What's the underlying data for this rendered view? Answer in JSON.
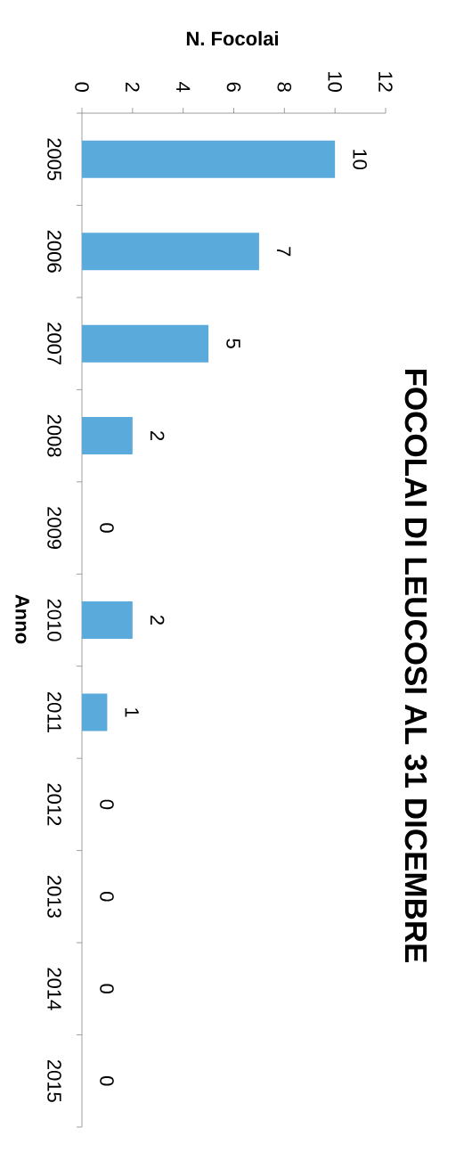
{
  "chart_data": {
    "type": "bar",
    "orientation": "horizontal",
    "title": "FOCOLAI DI LEUCOSI AL 31 DICEMBRE",
    "xlabel": "N. Focolai",
    "ylabel": "Anno",
    "categories": [
      "2005",
      "2006",
      "2007",
      "2008",
      "2009",
      "2010",
      "2011",
      "2012",
      "2013",
      "2014",
      "2015"
    ],
    "values": [
      10,
      7,
      5,
      2,
      0,
      2,
      1,
      0,
      0,
      0,
      0
    ],
    "color": "#5aabdc",
    "xlim": [
      0,
      12
    ],
    "xticks": [
      0,
      2,
      4,
      6,
      8,
      10,
      12
    ],
    "data_labels": true
  }
}
